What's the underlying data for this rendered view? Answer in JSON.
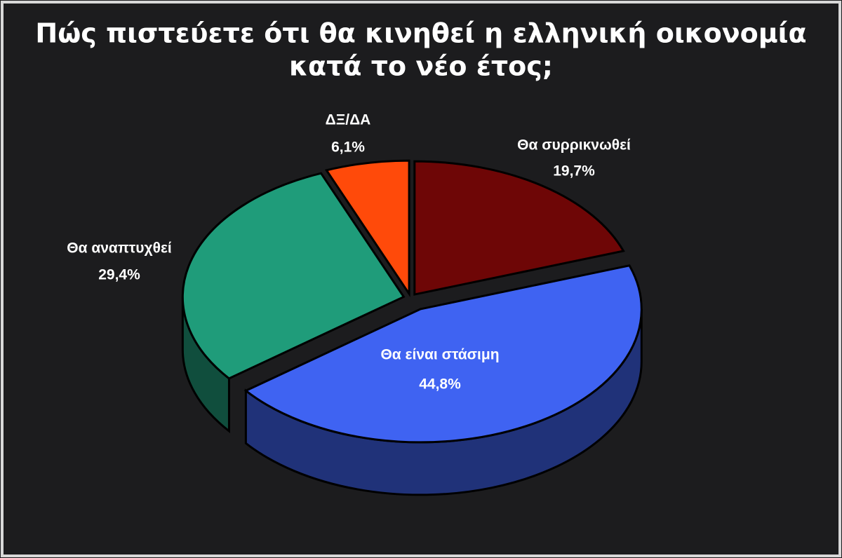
{
  "chart_data": {
    "type": "pie",
    "title": [
      "Πώς πιστεύετε ότι θα κινηθεί η ελληνική οικονομία",
      "κατά το νέο έτος;"
    ],
    "categories": [
      "Θα συρρικνωθεί",
      "Θα είναι στάσιμη",
      "Θα αναπτυχθεί",
      "ΔΞ/ΔΑ"
    ],
    "values": [
      19.7,
      44.8,
      29.4,
      6.1
    ],
    "value_labels": [
      "19,7%",
      "44,8%",
      "29,4%",
      "6,1%"
    ],
    "colors": [
      "#6e0606",
      "#3f63f2",
      "#1f9c7a",
      "#ff4a0a"
    ]
  }
}
